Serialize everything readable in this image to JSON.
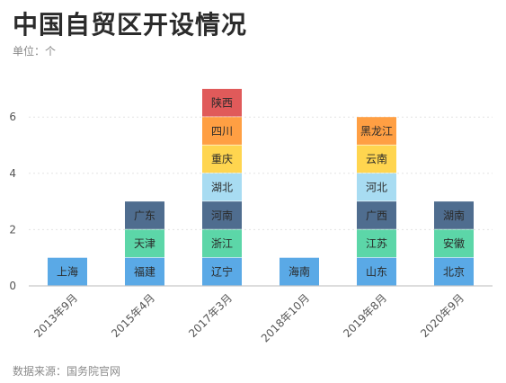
{
  "header": {
    "title": "中国自贸区开设情况",
    "unit": "单位：个"
  },
  "footer": {
    "source": "数据来源：国务院官网"
  },
  "chart_data": {
    "type": "bar",
    "stacked": true,
    "title": "中国自贸区开设情况",
    "xlabel": "",
    "ylabel": "",
    "ylim": [
      0,
      7
    ],
    "yticks": [
      0,
      2,
      4,
      6
    ],
    "grid": true,
    "categories": [
      "2013年9月",
      "2015年4月",
      "2017年3月",
      "2018年10月",
      "2019年8月",
      "2020年9月"
    ],
    "level_colors": [
      "#5aa9e6",
      "#5cd6a8",
      "#4f6d8f",
      "#a8dcf2",
      "#ffd54f",
      "#ff9f43",
      "#e05a5a"
    ],
    "stacks": [
      [
        "上海"
      ],
      [
        "福建",
        "天津",
        "广东"
      ],
      [
        "辽宁",
        "浙江",
        "河南",
        "湖北",
        "重庆",
        "四川",
        "陕西"
      ],
      [
        "海南"
      ],
      [
        "山东",
        "江苏",
        "广西",
        "河北",
        "云南",
        "黑龙江"
      ],
      [
        "北京",
        "安徽",
        "湖南"
      ]
    ],
    "values": [
      1,
      3,
      7,
      1,
      6,
      3
    ]
  }
}
